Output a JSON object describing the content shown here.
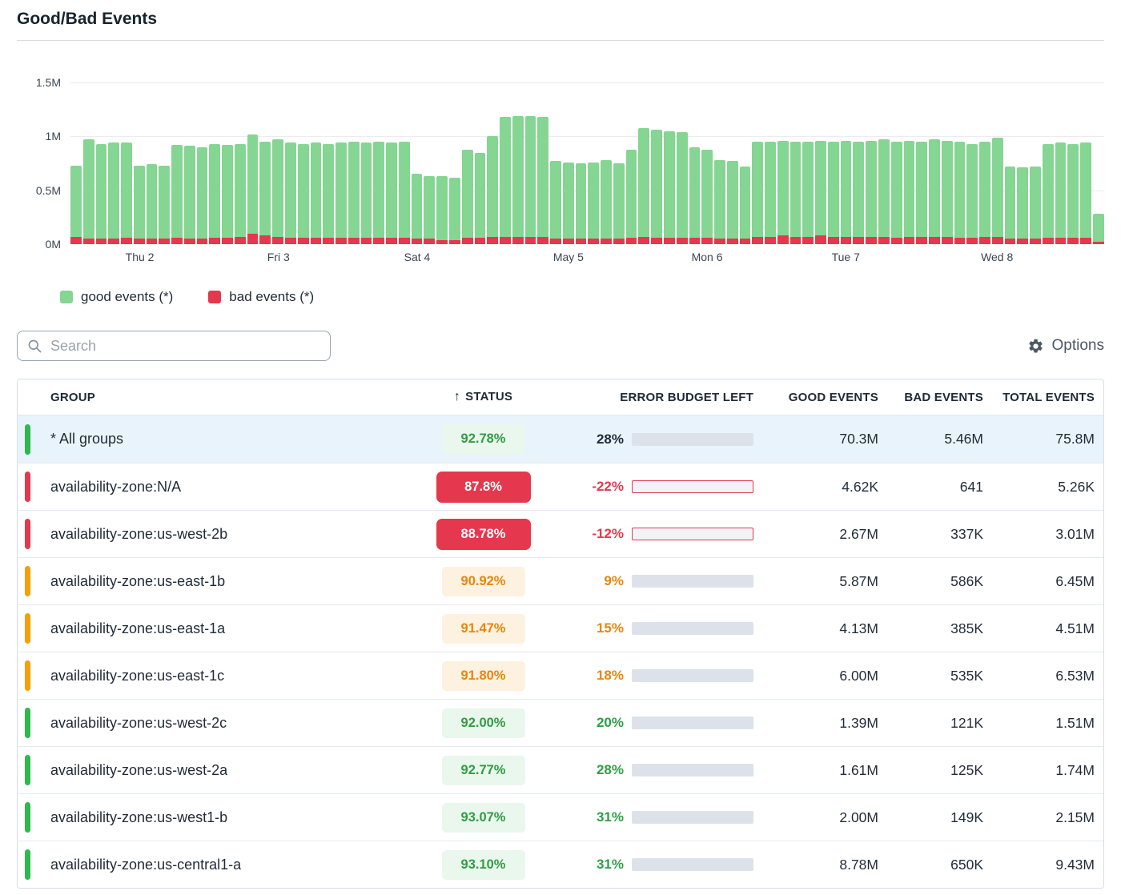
{
  "header": {
    "title": "Good/Bad Events"
  },
  "toolbar": {
    "search_placeholder": "Search",
    "options_label": "Options"
  },
  "colors": {
    "green": "#2eb84d",
    "green_fill": "#3ec058",
    "green_text": "#2f9e44",
    "green_bg": "#eaf7ed",
    "orange": "#f59f0a",
    "orange_text": "#e8860b",
    "orange_bg": "#fdf2e0",
    "red": "#e5384e",
    "selected_row_bg": "#e9f3fb",
    "track": "#dde2ea"
  },
  "chart": {
    "legend": [
      {
        "label": "good events (*)",
        "color": "#85d593"
      },
      {
        "label": "bad events (*)",
        "color": "#e5384e"
      }
    ]
  },
  "chart_data": {
    "type": "bar",
    "stacked": true,
    "title": "Good/Bad Events",
    "unit": "events (millions)",
    "ylim": [
      0,
      1.5
    ],
    "y_ticks_desc": [
      "1.5M",
      "1M",
      "0.5M",
      "0M"
    ],
    "x_tick_labels": [
      "Thu 2",
      "Fri 3",
      "Sat 4",
      "May 5",
      "Mon 6",
      "Tue 7",
      "Wed 8"
    ],
    "x_tick_indices": [
      5,
      16,
      27,
      39,
      50,
      61,
      73
    ],
    "series": [
      {
        "name": "good events (*)",
        "color": "#85d593",
        "values": [
          0.66,
          0.92,
          0.88,
          0.89,
          0.88,
          0.68,
          0.69,
          0.68,
          0.86,
          0.86,
          0.85,
          0.87,
          0.86,
          0.86,
          0.92,
          0.87,
          0.9,
          0.88,
          0.87,
          0.88,
          0.87,
          0.88,
          0.89,
          0.88,
          0.89,
          0.88,
          0.89,
          0.6,
          0.58,
          0.59,
          0.58,
          0.82,
          0.79,
          0.93,
          1.11,
          1.12,
          1.12,
          1.11,
          0.72,
          0.71,
          0.7,
          0.71,
          0.73,
          0.7,
          0.82,
          1.01,
          1.0,
          0.99,
          0.98,
          0.84,
          0.82,
          0.73,
          0.72,
          0.67,
          0.88,
          0.88,
          0.88,
          0.88,
          0.88,
          0.88,
          0.88,
          0.89,
          0.88,
          0.89,
          0.9,
          0.89,
          0.89,
          0.88,
          0.9,
          0.89,
          0.89,
          0.87,
          0.88,
          0.92,
          0.67,
          0.66,
          0.67,
          0.87,
          0.88,
          0.87,
          0.88,
          0.26
        ]
      },
      {
        "name": "bad events (*)",
        "color": "#e5384e",
        "values": [
          0.07,
          0.05,
          0.05,
          0.05,
          0.06,
          0.05,
          0.05,
          0.05,
          0.06,
          0.05,
          0.05,
          0.06,
          0.06,
          0.07,
          0.1,
          0.08,
          0.07,
          0.06,
          0.06,
          0.06,
          0.06,
          0.06,
          0.06,
          0.06,
          0.06,
          0.06,
          0.06,
          0.05,
          0.05,
          0.04,
          0.04,
          0.06,
          0.06,
          0.07,
          0.07,
          0.07,
          0.07,
          0.07,
          0.05,
          0.05,
          0.05,
          0.05,
          0.05,
          0.05,
          0.06,
          0.07,
          0.06,
          0.06,
          0.06,
          0.06,
          0.06,
          0.05,
          0.05,
          0.05,
          0.07,
          0.07,
          0.08,
          0.07,
          0.07,
          0.08,
          0.07,
          0.07,
          0.07,
          0.07,
          0.07,
          0.06,
          0.07,
          0.07,
          0.07,
          0.07,
          0.06,
          0.06,
          0.07,
          0.07,
          0.05,
          0.05,
          0.05,
          0.06,
          0.06,
          0.06,
          0.06,
          0.02
        ]
      }
    ]
  },
  "table": {
    "columns": [
      "GROUP",
      "STATUS",
      "ERROR BUDGET LEFT",
      "GOOD EVENTS",
      "BAD EVENTS",
      "TOTAL EVENTS"
    ],
    "sort_arrow": "↑",
    "rows": [
      {
        "group": "* All groups",
        "indicator": "green",
        "status": "92.78%",
        "status_variant": "green",
        "budget": "28%",
        "budget_value": 28,
        "budget_variant": "dark",
        "bar": "green",
        "good": "70.3M",
        "bad": "5.46M",
        "total": "75.8M",
        "selected": true
      },
      {
        "group": "availability-zone:N/A",
        "indicator": "red",
        "status": "87.8%",
        "status_variant": "red",
        "budget": "-22%",
        "budget_value": -22,
        "budget_variant": "red",
        "bar": "negative",
        "good": "4.62K",
        "bad": "641",
        "total": "5.26K",
        "selected": false
      },
      {
        "group": "availability-zone:us-west-2b",
        "indicator": "red",
        "status": "88.78%",
        "status_variant": "red",
        "budget": "-12%",
        "budget_value": -12,
        "budget_variant": "red",
        "bar": "negative",
        "good": "2.67M",
        "bad": "337K",
        "total": "3.01M",
        "selected": false
      },
      {
        "group": "availability-zone:us-east-1b",
        "indicator": "orange",
        "status": "90.92%",
        "status_variant": "orange",
        "budget": "9%",
        "budget_value": 9,
        "budget_variant": "orange",
        "bar": "orange",
        "good": "5.87M",
        "bad": "586K",
        "total": "6.45M",
        "selected": false
      },
      {
        "group": "availability-zone:us-east-1a",
        "indicator": "orange",
        "status": "91.47%",
        "status_variant": "orange",
        "budget": "15%",
        "budget_value": 15,
        "budget_variant": "orange",
        "bar": "orange",
        "good": "4.13M",
        "bad": "385K",
        "total": "4.51M",
        "selected": false
      },
      {
        "group": "availability-zone:us-east-1c",
        "indicator": "orange",
        "status": "91.80%",
        "status_variant": "orange",
        "budget": "18%",
        "budget_value": 18,
        "budget_variant": "orange",
        "bar": "orange",
        "good": "6.00M",
        "bad": "535K",
        "total": "6.53M",
        "selected": false
      },
      {
        "group": "availability-zone:us-west-2c",
        "indicator": "green",
        "status": "92.00%",
        "status_variant": "green",
        "budget": "20%",
        "budget_value": 20,
        "budget_variant": "green",
        "bar": "green",
        "good": "1.39M",
        "bad": "121K",
        "total": "1.51M",
        "selected": false
      },
      {
        "group": "availability-zone:us-west-2a",
        "indicator": "green",
        "status": "92.77%",
        "status_variant": "green",
        "budget": "28%",
        "budget_value": 28,
        "budget_variant": "green",
        "bar": "green",
        "good": "1.61M",
        "bad": "125K",
        "total": "1.74M",
        "selected": false
      },
      {
        "group": "availability-zone:us-west1-b",
        "indicator": "green",
        "status": "93.07%",
        "status_variant": "green",
        "budget": "31%",
        "budget_value": 31,
        "budget_variant": "green",
        "bar": "green",
        "good": "2.00M",
        "bad": "149K",
        "total": "2.15M",
        "selected": false
      },
      {
        "group": "availability-zone:us-central1-a",
        "indicator": "green",
        "status": "93.10%",
        "status_variant": "green",
        "budget": "31%",
        "budget_value": 31,
        "budget_variant": "green",
        "bar": "green",
        "good": "8.78M",
        "bad": "650K",
        "total": "9.43M",
        "selected": false
      }
    ]
  }
}
